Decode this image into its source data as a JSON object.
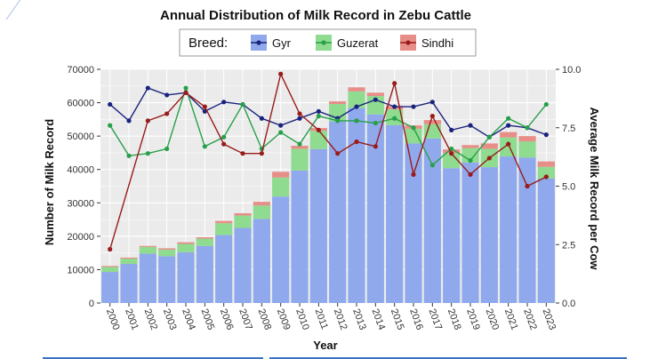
{
  "chart_data": {
    "type": "bar",
    "title": "Annual Distribution of Milk Record in Zebu Cattle",
    "xlabel": "Year",
    "ylabel": "Number of Milk Record",
    "y2label": "Average Milk Record per Cow",
    "legend_title": "Breed:",
    "legend_position": "top",
    "ylim": [
      0,
      70000
    ],
    "y2lim": [
      0,
      10
    ],
    "yticks": [
      0,
      10000,
      20000,
      30000,
      40000,
      50000,
      60000,
      70000
    ],
    "yticklabels": [
      "0",
      "10000",
      "20000",
      "30000",
      "40000",
      "50000",
      "60000",
      "70000"
    ],
    "y2ticks": [
      0,
      2.5,
      5,
      7.5,
      10
    ],
    "y2ticklabels": [
      "0.0",
      "2.5",
      "5.0",
      "7.5",
      "10.0"
    ],
    "categories": [
      "2000",
      "2001",
      "2002",
      "2003",
      "2004",
      "2005",
      "2006",
      "2007",
      "2008",
      "2009",
      "2010",
      "2011",
      "2012",
      "2013",
      "2014",
      "2015",
      "2016",
      "2017",
      "2018",
      "2019",
      "2020",
      "2021",
      "2022",
      "2023"
    ],
    "bar_series": [
      {
        "name": "Gyr",
        "color": "#8fa9ec",
        "values": [
          9300,
          11700,
          14800,
          14000,
          15200,
          17100,
          20400,
          22500,
          25200,
          31900,
          39700,
          46100,
          54400,
          58400,
          56500,
          53300,
          47800,
          49300,
          40400,
          42100,
          40700,
          43900,
          43600,
          37300
        ]
      },
      {
        "name": "Guzerat",
        "color": "#8fdb8f",
        "values": [
          1500,
          1600,
          2000,
          2000,
          2500,
          2200,
          3500,
          3700,
          4000,
          5700,
          6500,
          5500,
          5200,
          5000,
          5500,
          4700,
          4400,
          4300,
          4500,
          4300,
          5500,
          5700,
          4800,
          3500
        ]
      },
      {
        "name": "Sindhi",
        "color": "#e88e88",
        "values": [
          300,
          300,
          300,
          400,
          500,
          400,
          700,
          700,
          1100,
          1700,
          900,
          800,
          800,
          1200,
          1000,
          1000,
          1000,
          1200,
          1100,
          900,
          1600,
          1600,
          1600,
          1600
        ]
      }
    ],
    "line_series": [
      {
        "name": "Gyr",
        "color": "#1a237e",
        "values": [
          8.5,
          7.8,
          9.2,
          8.9,
          9.0,
          8.2,
          8.6,
          8.5,
          7.9,
          7.6,
          7.9,
          8.2,
          7.9,
          8.4,
          8.7,
          8.4,
          8.4,
          8.6,
          7.4,
          7.6,
          7.1,
          7.6,
          7.5,
          7.2
        ]
      },
      {
        "name": "Guzerat",
        "color": "#27a04a",
        "values": [
          7.6,
          6.3,
          6.4,
          6.6,
          9.2,
          6.7,
          7.1,
          8.5,
          6.6,
          7.3,
          6.8,
          8.0,
          7.8,
          7.8,
          7.7,
          7.9,
          7.5,
          5.9,
          6.6,
          6.1,
          7.1,
          7.9,
          7.5,
          8.5
        ]
      },
      {
        "name": "Sindhi",
        "color": "#9a1b1b",
        "values": [
          2.3,
          null,
          7.8,
          8.1,
          9.0,
          8.4,
          6.8,
          6.4,
          6.4,
          9.8,
          8.1,
          7.4,
          6.4,
          6.9,
          6.7,
          9.4,
          5.5,
          8.0,
          6.4,
          5.5,
          6.2,
          6.8,
          5.0,
          5.4
        ]
      }
    ],
    "grid": true
  }
}
